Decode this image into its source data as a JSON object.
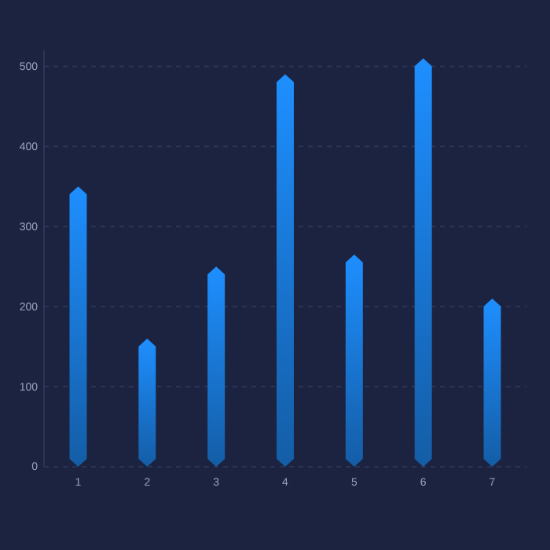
{
  "chart_data": {
    "type": "bar",
    "categories": [
      "1",
      "2",
      "3",
      "4",
      "5",
      "6",
      "7"
    ],
    "values": [
      350,
      160,
      250,
      490,
      265,
      510,
      210
    ],
    "color": "#1e8fff",
    "ylim": [
      0,
      520
    ],
    "yticks": [
      0,
      100,
      200,
      300,
      400,
      500
    ],
    "grid": "y"
  }
}
